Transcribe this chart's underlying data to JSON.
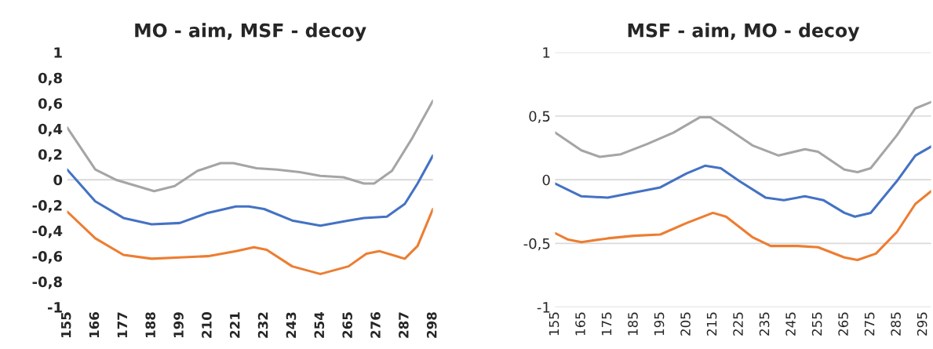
{
  "chart_data": [
    {
      "type": "line",
      "title": "MO - aim, MSF - decoy",
      "xlim": [
        155,
        298
      ],
      "ylim": [
        -1,
        1
      ],
      "xticks": [
        155,
        166,
        177,
        188,
        199,
        210,
        221,
        232,
        243,
        254,
        265,
        276,
        287,
        298
      ],
      "yticks": [
        {
          "value": -1,
          "label": "-1"
        },
        {
          "value": -0.8,
          "label": "-0,8"
        },
        {
          "value": -0.6,
          "label": "-0,6"
        },
        {
          "value": -0.4,
          "label": "-0,4"
        },
        {
          "value": -0.2,
          "label": "-0,2"
        },
        {
          "value": 0,
          "label": "0"
        },
        {
          "value": 0.2,
          "label": "0,2"
        },
        {
          "value": 0.4,
          "label": "0,4"
        },
        {
          "value": 0.6,
          "label": "0,6"
        },
        {
          "value": 0.8,
          "label": "0,8"
        },
        {
          "value": 1,
          "label": "1"
        }
      ],
      "grid": false,
      "legend": false,
      "ref_lines": [
        {
          "axis": "y",
          "value": 0,
          "color": "#d9d9d9"
        }
      ],
      "series": [
        {
          "color": "#4472c4",
          "x": [
            155,
            166,
            177,
            188,
            199,
            210,
            221,
            226,
            232,
            243,
            254,
            265,
            271,
            280,
            287,
            292,
            298
          ],
          "values": [
            0.08,
            -0.17,
            -0.3,
            -0.35,
            -0.34,
            -0.26,
            -0.21,
            -0.21,
            -0.23,
            -0.32,
            -0.36,
            -0.32,
            -0.3,
            -0.29,
            -0.19,
            -0.03,
            0.19
          ]
        },
        {
          "color": "#ed7d31",
          "x": [
            155,
            166,
            177,
            188,
            199,
            210,
            221,
            228,
            233,
            243,
            254,
            265,
            272,
            277,
            287,
            292,
            298
          ],
          "values": [
            -0.25,
            -0.46,
            -0.59,
            -0.62,
            -0.61,
            -0.6,
            -0.56,
            -0.53,
            -0.55,
            -0.68,
            -0.74,
            -0.68,
            -0.58,
            -0.56,
            -0.62,
            -0.52,
            -0.23
          ]
        },
        {
          "color": "#a5a5a5",
          "x": [
            155,
            166,
            174,
            189,
            197,
            206,
            215,
            220,
            229,
            237,
            246,
            254,
            263,
            271,
            275,
            282,
            290,
            298
          ],
          "values": [
            0.41,
            0.08,
            0.0,
            -0.09,
            -0.05,
            0.07,
            0.13,
            0.13,
            0.09,
            0.08,
            0.06,
            0.03,
            0.02,
            -0.03,
            -0.03,
            0.07,
            0.33,
            0.62
          ]
        }
      ]
    },
    {
      "type": "line",
      "title": "MSF - aim, MO - decoy",
      "xlim": [
        155,
        298
      ],
      "ylim": [
        -1,
        1
      ],
      "xticks": [
        155,
        165,
        175,
        185,
        195,
        205,
        215,
        225,
        235,
        245,
        255,
        265,
        275,
        285,
        295
      ],
      "yticks": [
        {
          "value": -1,
          "label": "-1"
        },
        {
          "value": -0.5,
          "label": "-0,5"
        },
        {
          "value": 0,
          "label": "0"
        },
        {
          "value": 0.5,
          "label": "0,5"
        },
        {
          "value": 1,
          "label": "1"
        }
      ],
      "grid": "y",
      "legend": false,
      "series": [
        {
          "color": "#4472c4",
          "x": [
            155,
            165,
            175,
            185,
            195,
            205,
            212,
            218,
            225,
            235,
            242,
            250,
            257,
            265,
            269,
            275,
            285,
            292,
            298
          ],
          "values": [
            -0.03,
            -0.13,
            -0.14,
            -0.1,
            -0.06,
            0.05,
            0.11,
            0.09,
            -0.01,
            -0.14,
            -0.16,
            -0.13,
            -0.16,
            -0.26,
            -0.29,
            -0.26,
            -0.01,
            0.19,
            0.26
          ]
        },
        {
          "color": "#ed7d31",
          "x": [
            155,
            160,
            165,
            175,
            185,
            195,
            205,
            215,
            220,
            230,
            237,
            247,
            255,
            265,
            270,
            277,
            285,
            292,
            298
          ],
          "values": [
            -0.42,
            -0.47,
            -0.49,
            -0.46,
            -0.44,
            -0.43,
            -0.34,
            -0.26,
            -0.29,
            -0.45,
            -0.52,
            -0.52,
            -0.53,
            -0.61,
            -0.63,
            -0.58,
            -0.41,
            -0.19,
            -0.09
          ]
        },
        {
          "color": "#a5a5a5",
          "x": [
            155,
            165,
            172,
            180,
            190,
            200,
            210,
            214,
            220,
            230,
            240,
            250,
            255,
            265,
            270,
            275,
            285,
            292,
            298
          ],
          "values": [
            0.37,
            0.23,
            0.18,
            0.2,
            0.28,
            0.37,
            0.49,
            0.49,
            0.41,
            0.27,
            0.19,
            0.24,
            0.22,
            0.08,
            0.06,
            0.09,
            0.35,
            0.56,
            0.61
          ]
        }
      ]
    }
  ]
}
